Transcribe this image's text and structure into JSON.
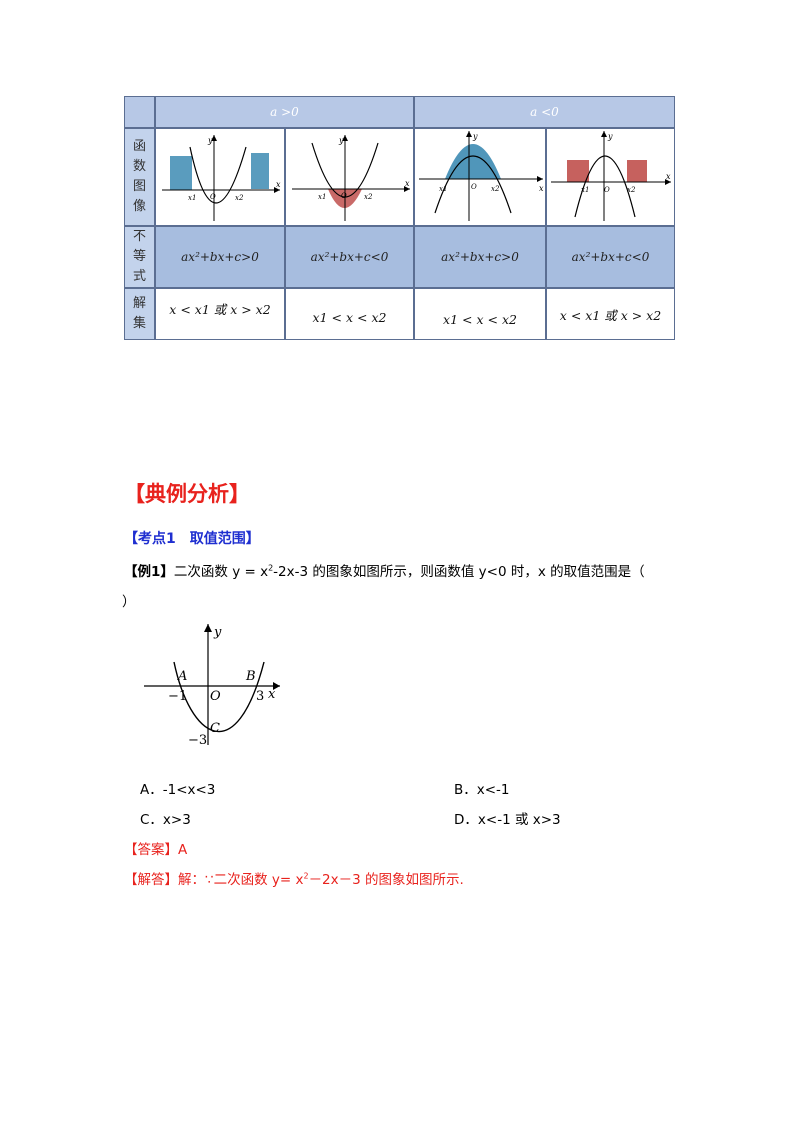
{
  "table": {
    "header_pos": "a >0",
    "header_neg": "a <0",
    "row_labels": {
      "graph": "函\n数\n图\n像",
      "inequality": "不\n等\n式",
      "solution": "解\n集"
    },
    "graph_labels": {
      "x": "x",
      "y": "y",
      "o": "O",
      "x1": "x1",
      "x2": "x2"
    },
    "inequalities": [
      "ax²+bx+c>0",
      "ax²+bx+c<0",
      "ax²+bx+c>0",
      "ax²+bx+c<0"
    ],
    "solutions": [
      "x < x1 或 x > x2",
      "x1 < x < x2",
      "x1 < x < x2",
      "x < x1 或 x > x2"
    ],
    "colors": {
      "fill_blue": "#3d8bb3",
      "fill_red": "#c0504d",
      "header_bg": "#b7c8e6"
    }
  },
  "section_title": "【典例分析】",
  "kaodian": "【考点1　取值范围】",
  "example": {
    "tag": "【例1】",
    "text_before": "二次函数 y = x",
    "sup": "2",
    "text_after": "-2x-3 的图象如图所示，则函数值 y<0 时，x 的取值范围是（",
    "text_line2": "）"
  },
  "figure": {
    "labels": {
      "y": "y",
      "x": "x",
      "A": "A",
      "B": "B",
      "C": "C",
      "O": "O",
      "neg1": "−1",
      "three": "3",
      "neg3": "−3"
    }
  },
  "options": {
    "A": "A．-1<x<3",
    "B": "B．x<-1",
    "C": "C．x>3",
    "D": "D．x<-1 或  x>3"
  },
  "answer": {
    "tag": "【答案】",
    "value": "A"
  },
  "analysis": {
    "tag": "【解答】",
    "text_before": "解：∵二次函数 y= x",
    "sup": "2",
    "text_after": "－2x－3 的图象如图所示."
  }
}
